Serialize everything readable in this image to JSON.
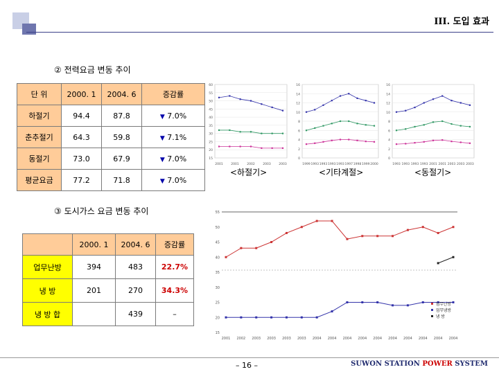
{
  "header": {
    "title": "III. 도입 효과"
  },
  "section1": {
    "title": "② 전력요금 변동 추이",
    "table": {
      "columns": [
        "단 위",
        "2000. 1",
        "2004. 6",
        "증감률"
      ],
      "rows": [
        {
          "label": "하절기",
          "v1": "94.4",
          "v2": "87.8",
          "change": "7.0%"
        },
        {
          "label": "춘추절기",
          "v1": "64.3",
          "v2": "59.8",
          "change": "7.1%"
        },
        {
          "label": "동절기",
          "v1": "73.0",
          "v2": "67.9",
          "change": "7.0%"
        },
        {
          "label": "평균요금",
          "v1": "77.2",
          "v2": "71.8",
          "change": "7.0%"
        }
      ]
    },
    "mini_charts": [
      {
        "caption": "<하절기>",
        "y_ticks": [
          "60",
          "55",
          "50",
          "45",
          "40",
          "35",
          "30",
          "25",
          "20",
          "15"
        ],
        "x_ticks": [
          "2001",
          "2001",
          "2002",
          "2003",
          "2003"
        ]
      },
      {
        "caption": "<기타계절>",
        "y_ticks": [
          "16",
          "14",
          "12",
          "10",
          "8",
          "6",
          "4",
          "2",
          "0"
        ],
        "x_ticks": [
          "1999",
          "1993",
          "1993",
          "1993",
          "1993",
          "1997",
          "1998",
          "1999",
          "2000"
        ]
      },
      {
        "caption": "<동절기>",
        "y_ticks": [
          "16",
          "14",
          "12",
          "10",
          "8",
          "6",
          "4",
          "2",
          "0"
        ],
        "x_ticks": [
          "1993",
          "1993",
          "1993",
          "1993",
          "2001",
          "2001",
          "2003",
          "2003",
          "2003"
        ]
      }
    ]
  },
  "section2": {
    "title": "③ 도시가스 요금 변동 추이",
    "table": {
      "columns": [
        "",
        "2000. 1",
        "2004. 6",
        "증감률"
      ],
      "rows": [
        {
          "label": "업무난방",
          "v1": "394",
          "v2": "483",
          "change": "22.7%"
        },
        {
          "label": "냉 방",
          "v1": "201",
          "v2": "270",
          "change": "34.3%"
        },
        {
          "label": "냉 방 합",
          "v1": "",
          "v2": "439",
          "change": "–"
        }
      ]
    },
    "gas_chart": {
      "y_ticks": [
        "55",
        "50",
        "45",
        "40",
        "35",
        "30",
        "25",
        "20",
        "15"
      ],
      "x_ticks": [
        "2001",
        "2002",
        "2003",
        "2003",
        "2003",
        "2003",
        "2004",
        "2004",
        "2004",
        "2004",
        "2004",
        "2004",
        "2004",
        "2004",
        "2004",
        "2004"
      ],
      "legend": [
        "업무난방",
        "업무냉방",
        "냉 방"
      ]
    }
  },
  "footer": {
    "page": "– 16 –",
    "brand_a": "SUWON STATION ",
    "brand_b": "POWER",
    "brand_c": " SYSTEM"
  },
  "chart_data": [
    {
      "type": "line",
      "caption": "<하절기>",
      "ylim": [
        15,
        60
      ],
      "series": [
        {
          "color": "#3333aa",
          "values": [
            52,
            53,
            51,
            50,
            48,
            46,
            44
          ]
        },
        {
          "color": "#339966",
          "values": [
            32,
            32,
            31,
            31,
            30,
            30,
            30
          ]
        },
        {
          "color": "#cc3399",
          "values": [
            22,
            22,
            22,
            22,
            21,
            21,
            21
          ]
        }
      ]
    },
    {
      "type": "line",
      "caption": "<기타계절>",
      "ylim": [
        0,
        16
      ],
      "series": [
        {
          "color": "#3333aa",
          "values": [
            10,
            10.5,
            11.5,
            12.5,
            13.5,
            14,
            13,
            12.5,
            12
          ]
        },
        {
          "color": "#339966",
          "values": [
            6,
            6.5,
            7,
            7.5,
            8,
            8,
            7.5,
            7.2,
            7
          ]
        },
        {
          "color": "#cc3399",
          "values": [
            3,
            3.2,
            3.5,
            3.8,
            4,
            4,
            3.8,
            3.6,
            3.5
          ]
        }
      ]
    },
    {
      "type": "line",
      "caption": "<동절기>",
      "ylim": [
        0,
        16
      ],
      "series": [
        {
          "color": "#3333aa",
          "values": [
            10,
            10.3,
            11,
            12,
            12.8,
            13.5,
            12.5,
            12,
            11.5
          ]
        },
        {
          "color": "#339966",
          "values": [
            6,
            6.3,
            6.8,
            7.2,
            7.8,
            8,
            7.4,
            7,
            6.8
          ]
        },
        {
          "color": "#cc3399",
          "values": [
            3,
            3.1,
            3.3,
            3.5,
            3.8,
            3.9,
            3.6,
            3.4,
            3.2
          ]
        }
      ]
    },
    {
      "type": "line",
      "ylim": [
        15,
        55
      ],
      "series": [
        {
          "color": "#cc3333",
          "values": [
            40,
            43,
            43,
            45,
            48,
            50,
            52,
            52,
            46,
            47,
            47,
            47,
            49,
            50,
            48,
            50
          ]
        },
        {
          "color": "#3333aa",
          "values": [
            20,
            20,
            20,
            20,
            20,
            20,
            20,
            22,
            25,
            25,
            25,
            24,
            24,
            25,
            25,
            25
          ]
        },
        {
          "color": "#222222",
          "values": [
            null,
            null,
            null,
            null,
            null,
            null,
            null,
            null,
            null,
            null,
            null,
            null,
            null,
            null,
            38,
            40
          ]
        }
      ]
    }
  ]
}
